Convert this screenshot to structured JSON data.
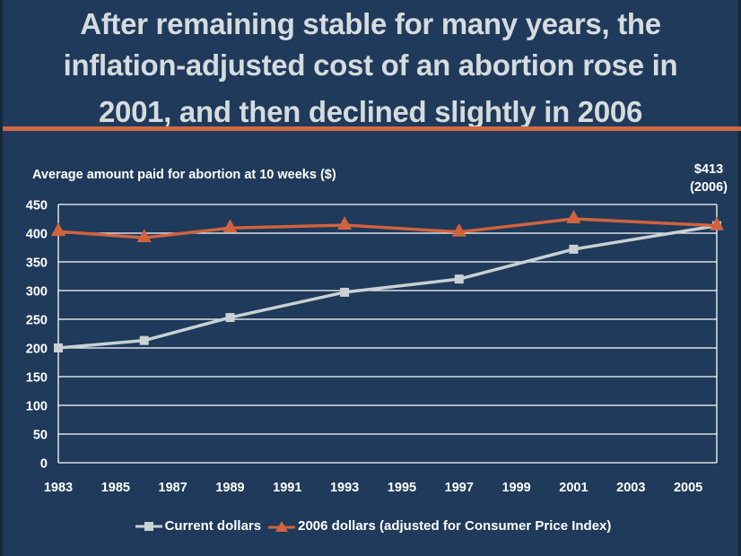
{
  "title": {
    "lines": [
      "After remaining stable for many years, the",
      "inflation-adjusted cost of an abortion rose in",
      "2001, and then declined slightly in 2006"
    ]
  },
  "colors": {
    "background": "#1f3a5a",
    "accent_rule": "#cf6a44",
    "current_series": "#c9d1d3",
    "adjusted_series": "#d0633e",
    "grid": "#ffffff"
  },
  "chart_data": {
    "type": "line",
    "title": "After remaining stable for many years, the inflation-adjusted cost of an abortion rose in 2001, and then declined slightly in 2006",
    "ylabel": "Average amount paid for abortion at 10 weeks ($)",
    "xlabel": "",
    "x": [
      1983,
      1986,
      1989,
      1993,
      1997,
      2001,
      2006
    ],
    "xlim": [
      1983,
      2006
    ],
    "ylim": [
      0,
      450
    ],
    "yticks": [
      0,
      50,
      100,
      150,
      200,
      250,
      300,
      350,
      400,
      450
    ],
    "xticks": [
      1983,
      1985,
      1987,
      1989,
      1991,
      1993,
      1995,
      1997,
      1999,
      2001,
      2003,
      2005
    ],
    "grid": true,
    "legend_position": "bottom",
    "series": [
      {
        "name": "Current dollars",
        "marker": "square",
        "color": "#c9d1d3",
        "values": [
          200,
          213,
          253,
          297,
          320,
          372,
          413
        ]
      },
      {
        "name": "2006 dollars (adjusted for Consumer Price Index)",
        "marker": "triangle",
        "color": "#d0633e",
        "values": [
          403,
          392,
          409,
          414,
          402,
          425,
          413
        ]
      }
    ],
    "annotations": [
      {
        "text": "$413",
        "subtext": "(2006)",
        "x": 2006,
        "y": 413
      }
    ]
  }
}
